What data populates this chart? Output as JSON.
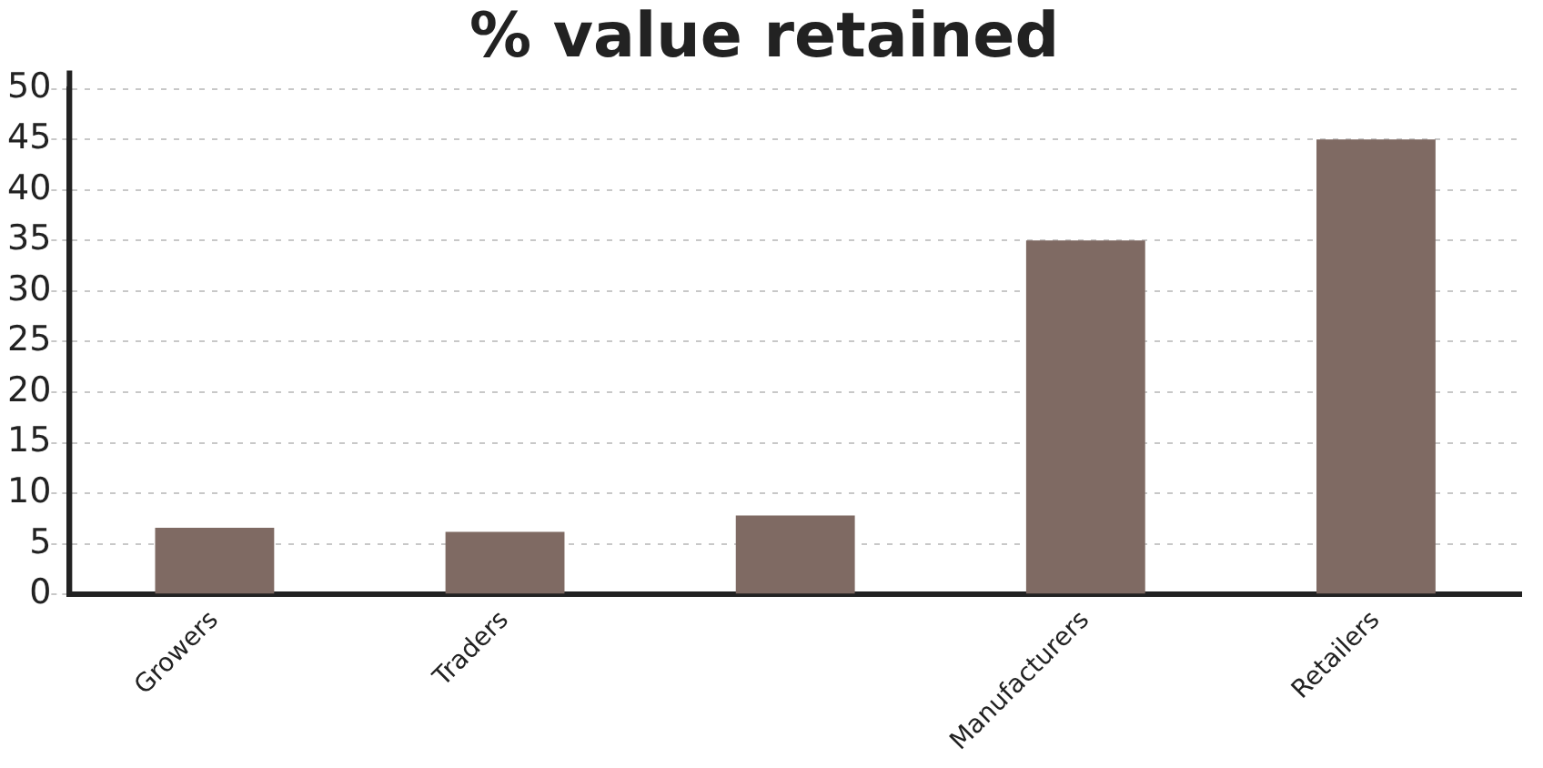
{
  "chart_data": {
    "type": "bar",
    "title": "% value retained",
    "categories": [
      "Growers",
      "Traders",
      null,
      "Manufacturers",
      "Retailers"
    ],
    "values": [
      6.6,
      6.2,
      7.8,
      35,
      45
    ],
    "color": "#7f6a63",
    "ylim": [
      0,
      50
    ],
    "yticks": [
      0,
      5,
      10,
      15,
      20,
      25,
      30,
      35,
      40,
      45,
      50
    ],
    "grid": "y",
    "legend": false
  }
}
